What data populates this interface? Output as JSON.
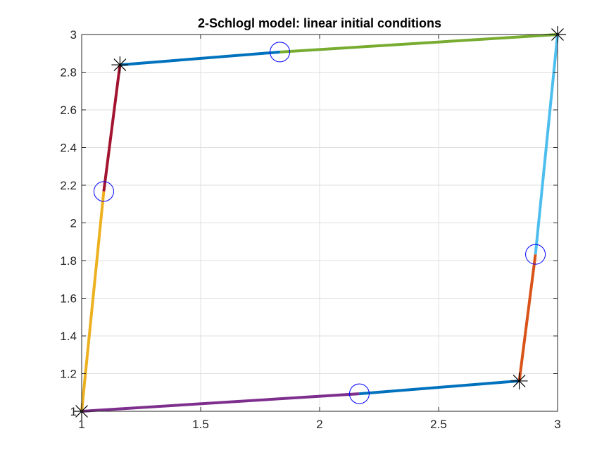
{
  "chart_data": {
    "type": "line",
    "title": "2-Schlogl model: linear initial conditions",
    "xlabel": "",
    "ylabel": "",
    "xlim": [
      1,
      3
    ],
    "ylim": [
      1,
      3
    ],
    "xticks": [
      1,
      1.5,
      2,
      2.5,
      3
    ],
    "yticks": [
      1,
      1.2,
      1.4,
      1.6,
      1.8,
      2,
      2.2,
      2.4,
      2.6,
      2.8,
      3
    ],
    "xtick_labels": [
      "1",
      "1.5",
      "2",
      "2.5",
      "3"
    ],
    "ytick_labels": [
      "1",
      "1.2",
      "1.4",
      "1.6",
      "1.8",
      "2",
      "2.2",
      "2.4",
      "2.6",
      "2.8",
      "3"
    ],
    "grid": true,
    "legend": "none",
    "series": [
      {
        "color": "#7E2F8E",
        "points": [
          [
            1.0,
            1.0
          ],
          [
            2.167,
            1.093
          ]
        ]
      },
      {
        "color": "#0072BD",
        "points": [
          [
            2.167,
            1.093
          ],
          [
            2.839,
            1.161
          ]
        ]
      },
      {
        "color": "#D95319",
        "points": [
          [
            2.839,
            1.161
          ],
          [
            2.907,
            1.833
          ]
        ]
      },
      {
        "color": "#4DBEEE",
        "points": [
          [
            2.907,
            1.833
          ],
          [
            3.0,
            3.0
          ]
        ]
      },
      {
        "color": "#77AC30",
        "points": [
          [
            3.0,
            3.0
          ],
          [
            1.833,
            2.907
          ]
        ]
      },
      {
        "color": "#0072BD",
        "points": [
          [
            1.833,
            2.907
          ],
          [
            1.161,
            2.839
          ]
        ]
      },
      {
        "color": "#A2142F",
        "points": [
          [
            1.161,
            2.839
          ],
          [
            1.093,
            2.167
          ]
        ]
      },
      {
        "color": "#EDB120",
        "points": [
          [
            1.093,
            2.167
          ],
          [
            1.0,
            1.0
          ]
        ]
      }
    ],
    "circle_markers": {
      "color": "#0000FF",
      "points": [
        [
          2.167,
          1.093
        ],
        [
          2.907,
          1.833
        ],
        [
          1.833,
          2.907
        ],
        [
          1.093,
          2.167
        ]
      ]
    },
    "star_markers": {
      "color": "#000000",
      "points": [
        [
          1.0,
          1.0
        ],
        [
          2.839,
          1.161
        ],
        [
          3.0,
          3.0
        ],
        [
          1.161,
          2.839
        ]
      ]
    }
  }
}
